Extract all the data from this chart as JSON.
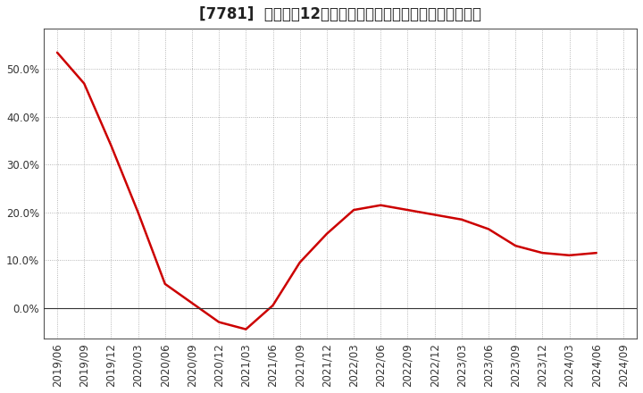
{
  "title": "[7781]  売上高の12か月移動合計の対前年同期増減率の推移",
  "line_color": "#cc0000",
  "background_color": "#ffffff",
  "grid_color": "#999999",
  "dates": [
    "2019/06",
    "2019/09",
    "2019/12",
    "2020/03",
    "2020/06",
    "2020/09",
    "2020/12",
    "2021/03",
    "2021/06",
    "2021/09",
    "2021/12",
    "2022/03",
    "2022/06",
    "2022/09",
    "2022/12",
    "2023/03",
    "2023/06",
    "2023/09",
    "2023/12",
    "2024/03",
    "2024/06",
    "2024/09"
  ],
  "values": [
    0.535,
    0.47,
    0.34,
    0.2,
    0.05,
    0.01,
    -0.03,
    -0.045,
    0.005,
    0.095,
    0.155,
    0.205,
    0.215,
    0.205,
    0.195,
    0.185,
    0.165,
    0.13,
    0.115,
    0.11,
    0.115,
    null
  ],
  "yticks": [
    0.0,
    0.1,
    0.2,
    0.3,
    0.4,
    0.5
  ],
  "ylim": [
    -0.065,
    0.585
  ],
  "linewidth": 1.8,
  "title_fontsize": 12,
  "tick_fontsize": 8.5
}
